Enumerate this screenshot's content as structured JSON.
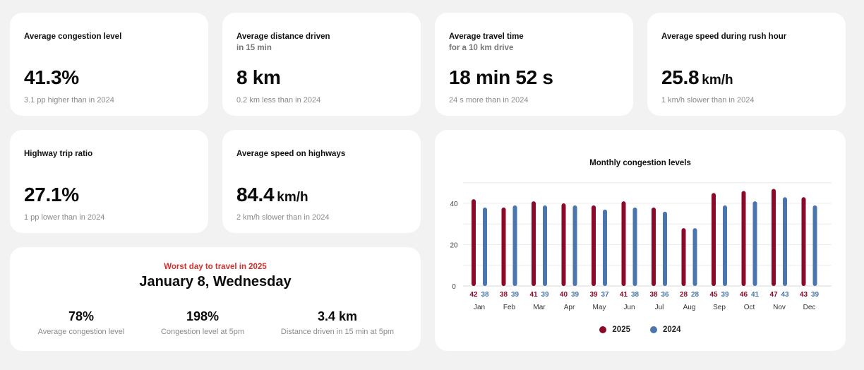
{
  "stats": [
    {
      "title": "Average congestion level",
      "subtitle": "",
      "value": "41.3%",
      "unit": "",
      "comparison": "3.1 pp higher than in 2024"
    },
    {
      "title": "Average distance driven",
      "subtitle": "in 15 min",
      "value": "8 km",
      "unit": "",
      "comparison": "0.2 km less than in 2024"
    },
    {
      "title": "Average travel time",
      "subtitle": "for a 10 km drive",
      "value": "18 min 52 s",
      "unit": "",
      "comparison": "24 s more than in 2024"
    },
    {
      "title": "Average speed during rush hour",
      "subtitle": "",
      "value": "25.8",
      "unit": "km/h",
      "comparison": "1 km/h slower than in 2024"
    },
    {
      "title": "Highway trip ratio",
      "subtitle": "",
      "value": "27.1%",
      "unit": "",
      "comparison": "1 pp lower than in 2024"
    },
    {
      "title": "Average speed on highways",
      "subtitle": "",
      "value": "84.4",
      "unit": "km/h",
      "comparison": "2 km/h slower than in 2024"
    }
  ],
  "worst_day": {
    "eyebrow": "Worst day to travel in 2025",
    "date": "January 8, Wednesday",
    "stats": [
      {
        "value": "78%",
        "label": "Average congestion level"
      },
      {
        "value": "198%",
        "label": "Congestion level at 5pm"
      },
      {
        "value": "3.4 km",
        "label": "Distance driven in 15 min at 5pm"
      }
    ]
  },
  "colors": {
    "series_2025": "#8b0a2a",
    "series_2024": "#4a76ad"
  },
  "chart_data": {
    "type": "bar",
    "title": "Monthly congestion levels",
    "categories": [
      "Jan",
      "Feb",
      "Mar",
      "Apr",
      "May",
      "Jun",
      "Jul",
      "Aug",
      "Sep",
      "Oct",
      "Nov",
      "Dec"
    ],
    "series": [
      {
        "name": "2025",
        "values": [
          42,
          38,
          41,
          40,
          39,
          41,
          38,
          28,
          45,
          46,
          47,
          43
        ]
      },
      {
        "name": "2024",
        "values": [
          38,
          39,
          39,
          39,
          37,
          38,
          36,
          28,
          39,
          41,
          43,
          39
        ]
      }
    ],
    "y_ticks": [
      "0",
      "20",
      "40"
    ],
    "ylim": [
      0,
      50
    ],
    "grid": true,
    "legend_position": "bottom"
  }
}
